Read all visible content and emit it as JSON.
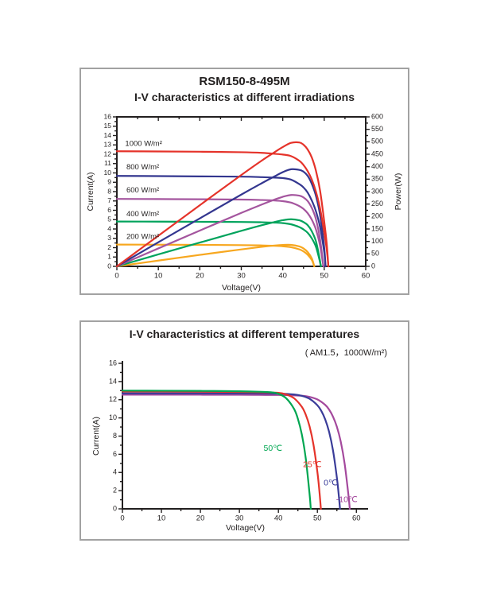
{
  "page": {
    "background": "#ffffff",
    "panel_border": "#a2a2a2"
  },
  "chart_data": [
    {
      "type": "line",
      "title": "RSM150-8-495M",
      "subtitle": "I-V characteristics at different irradiations",
      "xlabel": "Voltage(V)",
      "ylabel_left": "Current(A)",
      "ylabel_right": "Power(W)",
      "xlim": [
        0,
        60
      ],
      "ylim_left": [
        0,
        16
      ],
      "ylim_right": [
        0,
        600
      ],
      "frame": "box",
      "grid": false,
      "axis_color": "#221f1f",
      "x_major_ticks": [
        0,
        10,
        20,
        30,
        40,
        50,
        60
      ],
      "x_minor_ticks": [
        5,
        15,
        25,
        35,
        45,
        55
      ],
      "y_left_major_ticks": [
        0,
        1,
        2,
        3,
        4,
        5,
        6,
        7,
        8,
        9,
        10,
        11,
        12,
        13,
        14,
        15,
        16
      ],
      "y_left_minor_ticks": [
        0.5,
        1.5,
        2.5,
        3.5,
        4.5,
        5.5,
        6.5,
        7.5,
        8.5,
        9.5,
        10.5,
        11.5,
        12.5,
        13.5,
        14.5,
        15.5
      ],
      "y_right_major_ticks": [
        0,
        50,
        100,
        150,
        200,
        250,
        300,
        350,
        400,
        450,
        500,
        550,
        600
      ],
      "y_right_minor_ticks": [
        25,
        75,
        125,
        175,
        225,
        275,
        325,
        375,
        425,
        475,
        525,
        575
      ],
      "power_curves": true,
      "series": [
        {
          "name": "1000 W/m²",
          "color": "#E5332A",
          "isc": 12.3,
          "voc": 51.0,
          "pmax": 495,
          "points": [
            [
              0,
              12.32
            ],
            [
              10,
              12.3
            ],
            [
              20,
              12.27
            ],
            [
              30,
              12.22
            ],
            [
              35,
              12.15
            ],
            [
              38,
              12.05
            ],
            [
              40,
              11.97
            ],
            [
              42,
              11.8
            ],
            [
              44,
              11.3
            ],
            [
              45,
              10.85
            ],
            [
              46,
              10.2
            ],
            [
              47,
              9.3
            ],
            [
              48,
              8.0
            ],
            [
              49,
              6.2
            ],
            [
              50,
              3.6
            ],
            [
              50.6,
              1.8
            ],
            [
              51,
              0
            ]
          ]
        },
        {
          "name": "800 W/m²",
          "color": "#33368F",
          "isc": 9.65,
          "voc": 50.3,
          "pmax": 397,
          "points": [
            [
              0,
              9.68
            ],
            [
              10,
              9.66
            ],
            [
              20,
              9.63
            ],
            [
              30,
              9.6
            ],
            [
              35,
              9.55
            ],
            [
              38,
              9.5
            ],
            [
              40,
              9.45
            ],
            [
              42,
              9.28
            ],
            [
              44,
              8.8
            ],
            [
              45,
              8.45
            ],
            [
              46,
              7.9
            ],
            [
              47,
              7.05
            ],
            [
              48,
              5.9
            ],
            [
              49,
              4.2
            ],
            [
              50,
              1.5
            ],
            [
              50.3,
              0
            ]
          ]
        },
        {
          "name": "600 W/m²",
          "color": "#A4559E",
          "isc": 7.2,
          "voc": 49.8,
          "pmax": 296,
          "points": [
            [
              0,
              7.22
            ],
            [
              10,
              7.2
            ],
            [
              20,
              7.18
            ],
            [
              30,
              7.15
            ],
            [
              35,
              7.1
            ],
            [
              38,
              7.05
            ],
            [
              40,
              6.98
            ],
            [
              42,
              6.82
            ],
            [
              44,
              6.45
            ],
            [
              45,
              6.15
            ],
            [
              46,
              5.7
            ],
            [
              47,
              5.0
            ],
            [
              48,
              3.95
            ],
            [
              49,
              2.2
            ],
            [
              49.8,
              0
            ]
          ]
        },
        {
          "name": "400 W/m²",
          "color": "#00A35C",
          "isc": 4.8,
          "voc": 49.2,
          "pmax": 195,
          "points": [
            [
              0,
              4.8
            ],
            [
              10,
              4.79
            ],
            [
              20,
              4.77
            ],
            [
              30,
              4.75
            ],
            [
              35,
              4.72
            ],
            [
              38,
              4.68
            ],
            [
              40,
              4.63
            ],
            [
              42,
              4.5
            ],
            [
              44,
              4.2
            ],
            [
              45,
              3.95
            ],
            [
              46,
              3.6
            ],
            [
              47,
              3.0
            ],
            [
              48,
              2.1
            ],
            [
              48.8,
              0.8
            ],
            [
              49.2,
              0
            ]
          ]
        },
        {
          "name": "200 W/m²",
          "color": "#F7A71F",
          "isc": 2.33,
          "voc": 47.6,
          "pmax": 90,
          "points": [
            [
              0,
              2.33
            ],
            [
              10,
              2.32
            ],
            [
              20,
              2.3
            ],
            [
              30,
              2.27
            ],
            [
              35,
              2.24
            ],
            [
              38,
              2.2
            ],
            [
              40,
              2.15
            ],
            [
              42,
              2.05
            ],
            [
              44,
              1.82
            ],
            [
              45,
              1.6
            ],
            [
              46,
              1.25
            ],
            [
              47,
              0.68
            ],
            [
              47.6,
              0
            ]
          ]
        }
      ],
      "labels": [
        {
          "text": "1000 W/m²",
          "x": 2.0,
          "y": 12.9,
          "color": "#221f1f"
        },
        {
          "text": "800 W/m²",
          "x": 2.3,
          "y": 10.4,
          "color": "#221f1f"
        },
        {
          "text": "600 W/m²",
          "x": 2.3,
          "y": 7.9,
          "color": "#221f1f"
        },
        {
          "text": "400 W/m²",
          "x": 2.3,
          "y": 5.35,
          "color": "#221f1f"
        },
        {
          "text": "200 W/m²",
          "x": 2.3,
          "y": 2.95,
          "color": "#221f1f"
        }
      ]
    },
    {
      "type": "line",
      "title": "I-V characteristics at different temperatures",
      "subtitle": "( AM1.5，1000W/m²)",
      "xlabel": "Voltage(V)",
      "ylabel_left": "Current(A)",
      "xlim": [
        0,
        63
      ],
      "ylim_left": [
        0,
        16
      ],
      "frame": "axes",
      "grid": false,
      "axis_color": "#221f1f",
      "x_major_ticks": [
        0,
        10,
        20,
        30,
        40,
        50,
        60
      ],
      "x_minor_ticks": [
        5,
        15,
        25,
        35,
        45,
        55
      ],
      "y_left_major_ticks": [
        0,
        2,
        4,
        6,
        8,
        10,
        12,
        14,
        16
      ],
      "y_left_minor_ticks": [
        1,
        3,
        5,
        7,
        9,
        11,
        13,
        15
      ],
      "power_curves": false,
      "series": [
        {
          "name": "50℃",
          "color": "#00A651",
          "isc": 13.0,
          "voc": 48.3,
          "points": [
            [
              0,
              13.0
            ],
            [
              10,
              12.99
            ],
            [
              20,
              12.97
            ],
            [
              30,
              12.93
            ],
            [
              35,
              12.88
            ],
            [
              38,
              12.82
            ],
            [
              40,
              12.65
            ],
            [
              42,
              12.16
            ],
            [
              44,
              11.0
            ],
            [
              45,
              9.9
            ],
            [
              46,
              8.2
            ],
            [
              47,
              5.6
            ],
            [
              48,
              1.6
            ],
            [
              48.3,
              0
            ]
          ]
        },
        {
          "name": "25℃",
          "color": "#E5332A",
          "isc": 12.9,
          "voc": 50.9,
          "points": [
            [
              0,
              12.9
            ],
            [
              10,
              12.9
            ],
            [
              20,
              12.88
            ],
            [
              30,
              12.85
            ],
            [
              35,
              12.82
            ],
            [
              40,
              12.76
            ],
            [
              42,
              12.58
            ],
            [
              44,
              12.17
            ],
            [
              46,
              11.22
            ],
            [
              47,
              10.37
            ],
            [
              48,
              9.06
            ],
            [
              49,
              7.04
            ],
            [
              50,
              4.04
            ],
            [
              50.5,
              2.0
            ],
            [
              50.9,
              0
            ]
          ]
        },
        {
          "name": "0℃",
          "color": "#3A3C99",
          "isc": 12.7,
          "voc": 55.8,
          "points": [
            [
              0,
              12.7
            ],
            [
              10,
              12.7
            ],
            [
              20,
              12.7
            ],
            [
              30,
              12.69
            ],
            [
              35,
              12.68
            ],
            [
              40,
              12.67
            ],
            [
              44,
              12.58
            ],
            [
              46,
              12.43
            ],
            [
              48,
              12.1
            ],
            [
              50,
              11.39
            ],
            [
              51,
              10.77
            ],
            [
              52,
              9.84
            ],
            [
              53,
              8.47
            ],
            [
              54,
              6.43
            ],
            [
              55,
              3.42
            ],
            [
              55.5,
              1.41
            ],
            [
              55.8,
              0
            ]
          ]
        },
        {
          "name": "-10℃",
          "color": "#A4499D",
          "isc": 12.55,
          "voc": 58.3,
          "points": [
            [
              0,
              12.55
            ],
            [
              10,
              12.55
            ],
            [
              20,
              12.55
            ],
            [
              30,
              12.54
            ],
            [
              35,
              12.53
            ],
            [
              40,
              12.52
            ],
            [
              44,
              12.48
            ],
            [
              46,
              12.44
            ],
            [
              48,
              12.31
            ],
            [
              50,
              12.03
            ],
            [
              52,
              11.43
            ],
            [
              53,
              10.92
            ],
            [
              54,
              10.14
            ],
            [
              55,
              9.02
            ],
            [
              56,
              7.37
            ],
            [
              57,
              4.93
            ],
            [
              58,
              1.37
            ],
            [
              58.3,
              0
            ]
          ]
        }
      ],
      "labels": [
        {
          "text": "50℃",
          "x": 36.2,
          "y": 6.4,
          "color": "#00A651",
          "size": 10.5
        },
        {
          "text": "25℃",
          "x": 46.3,
          "y": 4.6,
          "color": "#E5332A",
          "size": 10.5
        },
        {
          "text": "0℃",
          "x": 51.6,
          "y": 2.6,
          "color": "#3A3C99",
          "size": 10.5
        },
        {
          "text": "-10℃",
          "x": 54.8,
          "y": 0.75,
          "color": "#A4499D",
          "size": 10.5
        }
      ]
    }
  ]
}
